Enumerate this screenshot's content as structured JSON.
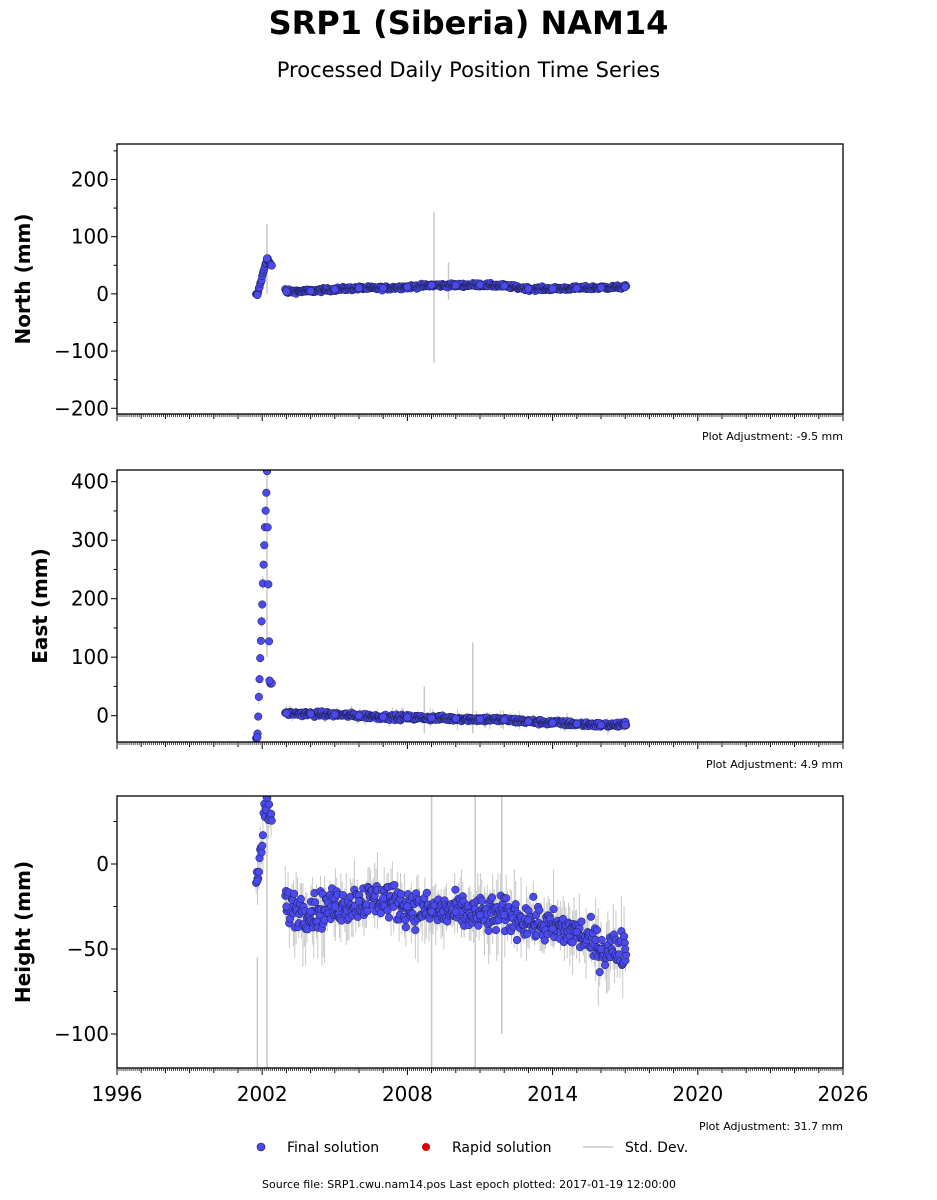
{
  "title": "SRP1 (Siberia) NAM14",
  "subtitle": "Processed Daily Position Time Series",
  "footer": "Source file: SRP1.cwu.nam14.pos  Last epoch plotted: 2017-01-19 12:00:00",
  "legend": {
    "final": "Final solution",
    "rapid": "Rapid solution",
    "std": "Std. Dev."
  },
  "colors": {
    "final": "#4a4af0",
    "final_edge": "#1a1a40",
    "rapid": "#dd0000",
    "std": "#c8c8c8"
  },
  "chart_data": [
    {
      "type": "scatter",
      "ylabel": "North (mm)",
      "adjustment": "Plot Adjustment: -9.5 mm",
      "xlim": [
        1996,
        2026
      ],
      "ylim": [
        -210,
        262
      ],
      "yticks": [
        -200,
        -100,
        0,
        100,
        200
      ],
      "ytick_labels": [
        "−200",
        "−100",
        "0",
        "100",
        "200"
      ],
      "series": [
        {
          "name": "Final solution",
          "x": [
            2001.8,
            2002.2,
            2003.0,
            2004.0,
            2005.0,
            2006.0,
            2007.0,
            2008.0,
            2009.0,
            2010.0,
            2011.0,
            2012.0,
            2013.0,
            2014.0,
            2015.0,
            2016.0,
            2017.0
          ],
          "y": [
            -2,
            62,
            4,
            5,
            8,
            10,
            10,
            12,
            15,
            15,
            16,
            14,
            9,
            9,
            10,
            11,
            12
          ]
        }
      ],
      "std_dev": [
        {
          "x": 2002.2,
          "low": 0,
          "high": 122
        },
        {
          "x": 2009.1,
          "low": -120,
          "high": 143
        },
        {
          "x": 2009.7,
          "low": -10,
          "high": 55
        }
      ]
    },
    {
      "type": "scatter",
      "ylabel": "East (mm)",
      "adjustment": "Plot Adjustment: 4.9 mm",
      "xlim": [
        1996,
        2026
      ],
      "ylim": [
        -45,
        420
      ],
      "yticks": [
        0,
        100,
        200,
        300,
        400
      ],
      "ytick_labels": [
        "0",
        "100",
        "200",
        "300",
        "400"
      ],
      "series": [
        {
          "name": "Final solution",
          "x": [
            2001.8,
            2002.2,
            2002.3,
            2003.0,
            2004.0,
            2005.0,
            2006.0,
            2007.0,
            2008.0,
            2009.0,
            2010.0,
            2011.0,
            2012.0,
            2013.0,
            2014.0,
            2015.0,
            2016.0,
            2017.0
          ],
          "y": [
            -37,
            418,
            60,
            4,
            3,
            2,
            0,
            -2,
            -3,
            -4,
            -5,
            -6,
            -7,
            -10,
            -12,
            -14,
            -16,
            -16
          ]
        }
      ],
      "std_dev": [
        {
          "x": 2002.2,
          "low": 100,
          "high": 420
        },
        {
          "x": 2010.7,
          "low": -30,
          "high": 125
        },
        {
          "x": 2008.7,
          "low": -30,
          "high": 50
        }
      ]
    },
    {
      "type": "scatter",
      "ylabel": "Height (mm)",
      "adjustment": "Plot Adjustment: 31.7 mm",
      "xlim": [
        1996,
        2026
      ],
      "ylim": [
        -120,
        40
      ],
      "yticks": [
        -100,
        -50,
        0
      ],
      "ytick_labels": [
        "−100",
        "−50",
        "0"
      ],
      "xticks": [
        1996,
        2002,
        2008,
        2014,
        2020,
        2026
      ],
      "xtick_labels": [
        "1996",
        "2002",
        "2008",
        "2014",
        "2020",
        "2026"
      ],
      "series": [
        {
          "name": "Final solution",
          "x": [
            2001.8,
            2002.2,
            2003.0,
            2004.0,
            2005.0,
            2006.0,
            2007.0,
            2008.0,
            2009.0,
            2010.0,
            2011.0,
            2012.0,
            2013.0,
            2014.0,
            2015.0,
            2016.0,
            2017.0
          ],
          "y": [
            -10,
            39,
            -25,
            -28,
            -25,
            -22,
            -20,
            -25,
            -28,
            -28,
            -30,
            -30,
            -33,
            -38,
            -40,
            -50,
            -50
          ]
        }
      ],
      "std_dev": [
        {
          "x": 2001.8,
          "low": -120,
          "high": -55
        },
        {
          "x": 2002.2,
          "low": -120,
          "high": 39
        },
        {
          "x": 2009.0,
          "low": -120,
          "high": 40
        },
        {
          "x": 2010.8,
          "low": -120,
          "high": 40
        },
        {
          "x": 2011.9,
          "low": -100,
          "high": 40
        }
      ]
    }
  ]
}
